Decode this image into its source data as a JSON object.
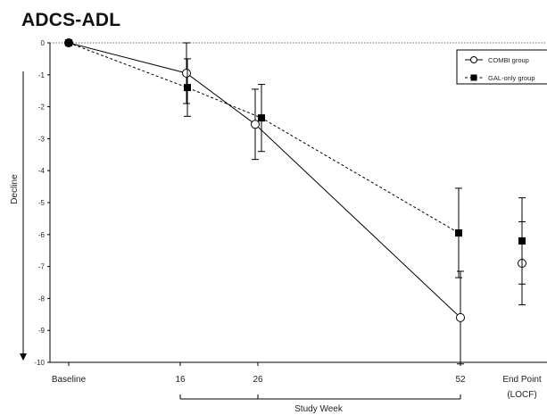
{
  "chart_data": {
    "type": "line",
    "title": "ADCS-ADL",
    "ylabel": "Decline",
    "xlabel": "Study Week",
    "ylim": [
      -10,
      0
    ],
    "yticks": [
      0,
      -1,
      -2,
      -3,
      -4,
      -5,
      -6,
      -7,
      -8,
      -9,
      -10
    ],
    "categories": [
      "Baseline",
      "16",
      "26",
      "52",
      "End Point\n(LOCF)"
    ],
    "grid": false,
    "legend_position": "top-right",
    "series": [
      {
        "name": "COMBI group",
        "marker": "open-circle",
        "line_style": "solid",
        "color": "#000000",
        "points": [
          {
            "x": "Baseline",
            "y": 0,
            "err": 0
          },
          {
            "x": "16",
            "y": -0.95,
            "err": 0.95
          },
          {
            "x": "26",
            "y": -2.55,
            "err": 1.1
          },
          {
            "x": "52",
            "y": -8.6,
            "err": 1.45
          },
          {
            "x": "End Point\n(LOCF)",
            "y": -6.9,
            "err": 1.3
          }
        ]
      },
      {
        "name": "GAL-only group",
        "marker": "filled-square",
        "line_style": "dashed",
        "color": "#000000",
        "points": [
          {
            "x": "Baseline",
            "y": 0,
            "err": 0
          },
          {
            "x": "16",
            "y": -1.4,
            "err": 0.9
          },
          {
            "x": "26",
            "y": -2.35,
            "err": 1.05
          },
          {
            "x": "52",
            "y": -5.95,
            "err": 1.4
          },
          {
            "x": "End Point\n(LOCF)",
            "y": -6.2,
            "err": 1.35
          }
        ]
      }
    ]
  }
}
